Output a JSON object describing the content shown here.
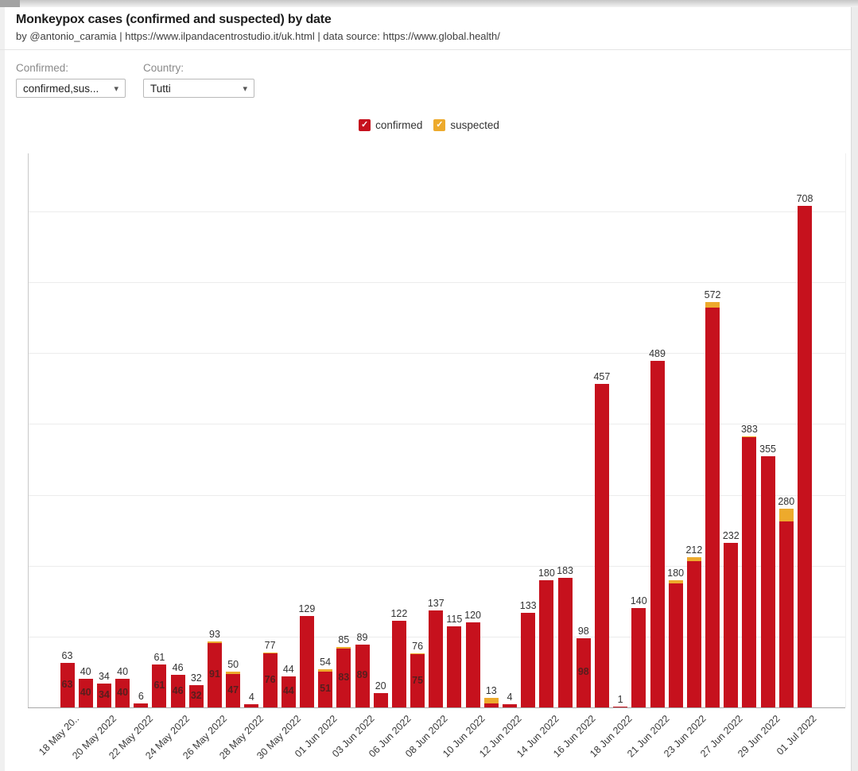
{
  "header": {
    "title": "Monkeypox cases (confirmed and suspected) by date",
    "subtitle": "by @antonio_caramia | https://www.ilpandacentrostudio.it/uk.html | data source: https://www.global.health/"
  },
  "filters": {
    "confirmed_label": "Confirmed:",
    "confirmed_value": "confirmed,sus...",
    "country_label": "Country:",
    "country_value": "Tutti"
  },
  "legend": {
    "check_glyph": "✓",
    "items": [
      {
        "label": "confirmed",
        "color": "#c6111d"
      },
      {
        "label": "suspected",
        "color": "#edaa2c"
      }
    ]
  },
  "chart_data": {
    "type": "bar",
    "stacked": true,
    "title": "Monkeypox cases (confirmed and suspected) by date",
    "xlabel": "",
    "ylabel": "",
    "legend_position": "top-center",
    "grid": "horizontal",
    "y_gridline_step": 100,
    "ylim": [
      0,
      783
    ],
    "series_names": [
      "confirmed",
      "suspected"
    ],
    "colors": {
      "confirmed": "#c6111d",
      "suspected": "#edaa2c"
    },
    "tick_every_n_bars": 2,
    "x_tick_labels": [
      "18 May 20..",
      "20 May 2022",
      "22 May 2022",
      "24 May 2022",
      "26 May 2022",
      "28 May 2022",
      "30 May 2022",
      "01 Jun 2022",
      "03 Jun 2022",
      "06 Jun 2022",
      "08 Jun 2022",
      "10 Jun 2022",
      "12 Jun 2022",
      "14 Jun 2022",
      "16 Jun 2022",
      "18 Jun 2022",
      "21 Jun 2022",
      "23 Jun 2022",
      "27 Jun 2022",
      "29 Jun 2022",
      "01 Jul 2022"
    ],
    "bars": [
      {
        "total": 63,
        "confirmed": 63,
        "suspected": 0,
        "inner": "63"
      },
      {
        "total": 40,
        "confirmed": 40,
        "suspected": 0,
        "inner": "40"
      },
      {
        "total": 34,
        "confirmed": 34,
        "suspected": 0,
        "inner": "34"
      },
      {
        "total": 40,
        "confirmed": 40,
        "suspected": 0,
        "inner": "40"
      },
      {
        "total": 6,
        "confirmed": 6,
        "suspected": 0,
        "inner": null
      },
      {
        "total": 61,
        "confirmed": 61,
        "suspected": 0,
        "inner": "61"
      },
      {
        "total": 46,
        "confirmed": 46,
        "suspected": 0,
        "inner": "46"
      },
      {
        "total": 32,
        "confirmed": 32,
        "suspected": 0,
        "inner": "32"
      },
      {
        "total": 93,
        "confirmed": 91,
        "suspected": 2,
        "inner": "91"
      },
      {
        "total": 50,
        "confirmed": 47,
        "suspected": 3,
        "inner": "47"
      },
      {
        "total": 4,
        "confirmed": 4,
        "suspected": 0,
        "inner": null
      },
      {
        "total": 77,
        "confirmed": 76,
        "suspected": 1,
        "inner": "76"
      },
      {
        "total": 44,
        "confirmed": 44,
        "suspected": 0,
        "inner": "44"
      },
      {
        "total": 129,
        "confirmed": 129,
        "suspected": 0,
        "inner": null
      },
      {
        "total": 54,
        "confirmed": 51,
        "suspected": 3,
        "inner": "51"
      },
      {
        "total": 85,
        "confirmed": 83,
        "suspected": 2,
        "inner": "83"
      },
      {
        "total": 89,
        "confirmed": 89,
        "suspected": 0,
        "inner": "89"
      },
      {
        "total": 20,
        "confirmed": 20,
        "suspected": 0,
        "inner": null
      },
      {
        "total": 122,
        "confirmed": 122,
        "suspected": 0,
        "inner": null
      },
      {
        "total": 76,
        "confirmed": 75,
        "suspected": 1,
        "inner": "75"
      },
      {
        "total": 137,
        "confirmed": 137,
        "suspected": 0,
        "inner": null
      },
      {
        "total": 115,
        "confirmed": 115,
        "suspected": 0,
        "inner": null
      },
      {
        "total": 120,
        "confirmed": 120,
        "suspected": 0,
        "inner": null
      },
      {
        "total": 13,
        "confirmed": 6,
        "suspected": 7,
        "inner": null
      },
      {
        "total": 4,
        "confirmed": 4,
        "suspected": 0,
        "inner": null
      },
      {
        "total": 133,
        "confirmed": 133,
        "suspected": 0,
        "inner": null
      },
      {
        "total": 180,
        "confirmed": 180,
        "suspected": 0,
        "inner": null
      },
      {
        "total": 183,
        "confirmed": 183,
        "suspected": 0,
        "inner": null
      },
      {
        "total": 98,
        "confirmed": 98,
        "suspected": 0,
        "inner": "98"
      },
      {
        "total": 457,
        "confirmed": 457,
        "suspected": 0,
        "inner": null
      },
      {
        "total": 1,
        "confirmed": 1,
        "suspected": 0,
        "inner": null
      },
      {
        "total": 140,
        "confirmed": 140,
        "suspected": 0,
        "inner": null
      },
      {
        "total": 489,
        "confirmed": 489,
        "suspected": 0,
        "inner": null
      },
      {
        "total": 180,
        "confirmed": 175,
        "suspected": 5,
        "inner": null
      },
      {
        "total": 212,
        "confirmed": 206,
        "suspected": 6,
        "inner": null
      },
      {
        "total": 572,
        "confirmed": 564,
        "suspected": 8,
        "inner": null
      },
      {
        "total": 232,
        "confirmed": 232,
        "suspected": 0,
        "inner": null
      },
      {
        "total": 383,
        "confirmed": 381,
        "suspected": 2,
        "inner": null
      },
      {
        "total": 355,
        "confirmed": 355,
        "suspected": 0,
        "inner": null
      },
      {
        "total": 280,
        "confirmed": 262,
        "suspected": 18,
        "inner": null
      },
      {
        "total": 708,
        "confirmed": 708,
        "suspected": 0,
        "inner": null
      }
    ]
  }
}
